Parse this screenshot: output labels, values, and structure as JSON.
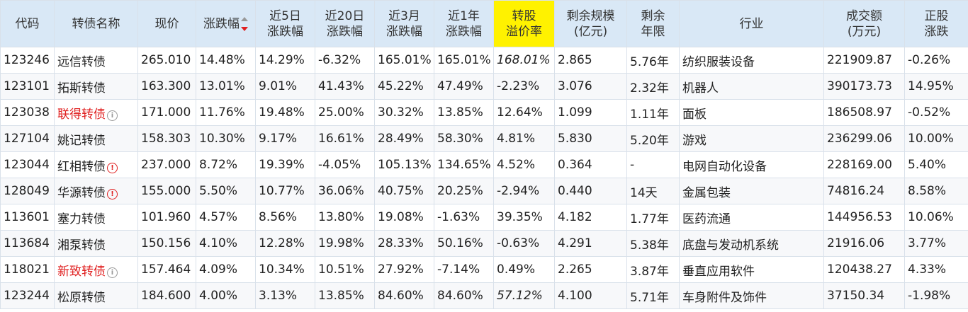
{
  "colors": {
    "header_bg": "#d9e8f6",
    "highlight_header_bg": "#fff200",
    "up": "#e02020",
    "down": "#1a8a1a",
    "code_link": "#1a5aa8",
    "muted": "#aaaaaa"
  },
  "header": {
    "code": "代码",
    "name": "转债名称",
    "price": "现价",
    "change": "涨跌幅",
    "change_5d": "近5日\n涨跌幅",
    "change_20d": "近20日\n涨跌幅",
    "change_3m": "近3月\n涨跌幅",
    "change_1y": "近1年\n涨跌幅",
    "premium": "转股\n溢价率",
    "remaining_size": "剩余规模\n(亿元)",
    "remaining_years": "剩余\n年限",
    "industry": "行业",
    "turnover": "成交额\n(万元)",
    "stock_change": "正股\n涨跌"
  },
  "sort": {
    "column": "change",
    "icon": "sort-desc-icon"
  },
  "rows": [
    {
      "code": "123246",
      "name": "远信转债",
      "name_style": "normal",
      "info_icon": "",
      "price": "265.010",
      "change": "14.48%",
      "change_5d": "14.29%",
      "change_20d": "-6.32%",
      "change_3m": "165.01%",
      "change_1y": "165.01%",
      "premium": "168.01%",
      "premium_muted": true,
      "remaining_size": "2.865",
      "remaining_years": "5.76年",
      "industry": "纺织服装设备",
      "turnover": "221909.87",
      "stock_change": "-0.26%"
    },
    {
      "code": "123101",
      "name": "拓斯转债",
      "name_style": "normal",
      "info_icon": "",
      "price": "163.300",
      "change": "13.01%",
      "change_5d": "9.01%",
      "change_20d": "41.43%",
      "change_3m": "45.22%",
      "change_1y": "47.49%",
      "premium": "-2.23%",
      "premium_muted": false,
      "remaining_size": "3.076",
      "remaining_years": "2.32年",
      "industry": "机器人",
      "turnover": "390173.73",
      "stock_change": "14.95%"
    },
    {
      "code": "123038",
      "name": "联得转债",
      "name_style": "red",
      "info_icon": "gray",
      "price": "171.000",
      "change": "11.76%",
      "change_5d": "19.48%",
      "change_20d": "25.00%",
      "change_3m": "30.32%",
      "change_1y": "13.85%",
      "premium": "12.64%",
      "premium_muted": false,
      "remaining_size": "1.099",
      "remaining_years": "1.11年",
      "industry": "面板",
      "turnover": "186508.97",
      "stock_change": "-0.52%"
    },
    {
      "code": "127104",
      "name": "姚记转债",
      "name_style": "normal",
      "info_icon": "",
      "price": "158.303",
      "change": "10.30%",
      "change_5d": "9.17%",
      "change_20d": "16.61%",
      "change_3m": "28.49%",
      "change_1y": "58.30%",
      "premium": "4.81%",
      "premium_muted": false,
      "remaining_size": "5.830",
      "remaining_years": "5.20年",
      "industry": "游戏",
      "turnover": "236299.06",
      "stock_change": "10.00%"
    },
    {
      "code": "123044",
      "name": "红相转债",
      "name_style": "normal",
      "info_icon": "red",
      "price": "237.000",
      "change": "8.72%",
      "change_5d": "19.39%",
      "change_20d": "-4.05%",
      "change_3m": "105.13%",
      "change_1y": "134.65%",
      "premium": "4.52%",
      "premium_muted": false,
      "remaining_size": "0.364",
      "remaining_years": "-",
      "industry": "电网自动化设备",
      "turnover": "228169.00",
      "stock_change": "5.40%"
    },
    {
      "code": "128049",
      "name": "华源转债",
      "name_style": "normal",
      "info_icon": "red",
      "price": "155.000",
      "change": "5.50%",
      "change_5d": "10.77%",
      "change_20d": "36.06%",
      "change_3m": "40.75%",
      "change_1y": "20.25%",
      "premium": "-2.94%",
      "premium_muted": false,
      "remaining_size": "0.440",
      "remaining_years": "14天",
      "industry": "金属包装",
      "turnover": "74816.24",
      "stock_change": "8.58%"
    },
    {
      "code": "113601",
      "name": "塞力转债",
      "name_style": "normal",
      "info_icon": "",
      "price": "101.960",
      "change": "4.57%",
      "change_5d": "8.56%",
      "change_20d": "13.80%",
      "change_3m": "19.08%",
      "change_1y": "-1.63%",
      "premium": "39.35%",
      "premium_muted": false,
      "remaining_size": "4.182",
      "remaining_years": "1.77年",
      "industry": "医药流通",
      "turnover": "144956.53",
      "stock_change": "10.06%"
    },
    {
      "code": "113684",
      "name": "湘泵转债",
      "name_style": "normal",
      "info_icon": "",
      "price": "150.156",
      "change": "4.10%",
      "change_5d": "12.28%",
      "change_20d": "19.98%",
      "change_3m": "28.33%",
      "change_1y": "50.16%",
      "premium": "-0.63%",
      "premium_muted": false,
      "remaining_size": "4.291",
      "remaining_years": "5.38年",
      "industry": "底盘与发动机系统",
      "turnover": "21916.06",
      "stock_change": "3.77%"
    },
    {
      "code": "118021",
      "name": "新致转债",
      "name_style": "red",
      "info_icon": "gray",
      "price": "157.464",
      "change": "4.09%",
      "change_5d": "10.34%",
      "change_20d": "10.51%",
      "change_3m": "27.92%",
      "change_1y": "-7.14%",
      "premium": "0.49%",
      "premium_muted": false,
      "remaining_size": "2.265",
      "remaining_years": "3.87年",
      "industry": "垂直应用软件",
      "turnover": "120438.27",
      "stock_change": "4.33%"
    },
    {
      "code": "123244",
      "name": "松原转债",
      "name_style": "normal",
      "info_icon": "",
      "price": "184.600",
      "change": "4.00%",
      "change_5d": "3.13%",
      "change_20d": "13.85%",
      "change_3m": "84.60%",
      "change_1y": "84.60%",
      "premium": "57.12%",
      "premium_muted": true,
      "remaining_size": "4.100",
      "remaining_years": "5.71年",
      "industry": "车身附件及饰件",
      "turnover": "37150.34",
      "stock_change": "-1.98%"
    }
  ]
}
